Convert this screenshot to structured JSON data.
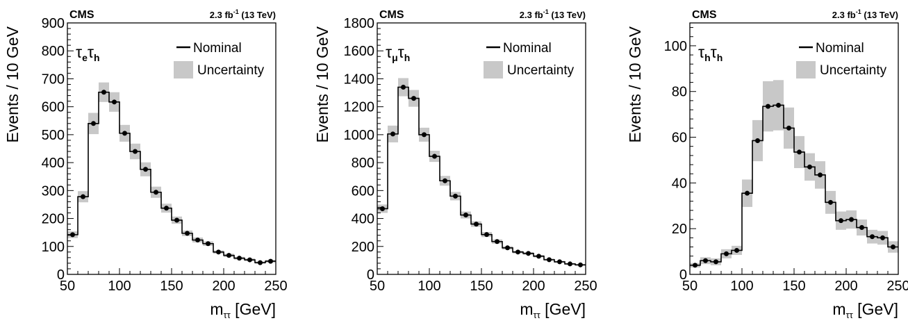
{
  "colors": {
    "nominal_line": "#000000",
    "uncertainty_band": "#c8c8c8",
    "marker": "#000000"
  },
  "chart_data": [
    {
      "type": "histogram",
      "experiment": "CMS",
      "luminosity_prefix": "2.3 fb",
      "luminosity_exp": "-1",
      "luminosity_suffix": " (13 TeV)",
      "channel_label": {
        "base1": "τ",
        "sub1": "e",
        "base2": "τ",
        "sub2": "h"
      },
      "ylabel": "Events / 10 GeV",
      "xlabel": {
        "base": "m",
        "sub": "ττ",
        "unit": " [GeV]"
      },
      "xlim": [
        50,
        250
      ],
      "ylim": [
        0,
        900
      ],
      "xticks": [
        50,
        100,
        150,
        200,
        250
      ],
      "yticks": [
        0,
        100,
        200,
        300,
        400,
        500,
        600,
        700,
        800,
        900
      ],
      "bin_edges": [
        50,
        60,
        70,
        80,
        90,
        100,
        110,
        120,
        130,
        140,
        150,
        160,
        170,
        180,
        190,
        200,
        210,
        220,
        230,
        240,
        250
      ],
      "values": [
        142,
        278,
        540,
        652,
        617,
        505,
        440,
        376,
        294,
        237,
        194,
        147,
        123,
        110,
        80,
        68,
        58,
        52,
        42,
        47
      ],
      "uncertainty": [
        12,
        20,
        38,
        35,
        35,
        30,
        28,
        25,
        20,
        16,
        13,
        10,
        9,
        8,
        6,
        6,
        5,
        5,
        4,
        5
      ],
      "legend": [
        {
          "label": "Nominal",
          "style": "line"
        },
        {
          "label": "Uncertainty",
          "style": "box"
        }
      ],
      "legend_position": "top-right"
    },
    {
      "type": "histogram",
      "experiment": "CMS",
      "luminosity_prefix": "2.3 fb",
      "luminosity_exp": "-1",
      "luminosity_suffix": " (13 TeV)",
      "channel_label": {
        "base1": "τ",
        "sub1": "μ",
        "base2": "τ",
        "sub2": "h"
      },
      "ylabel": "Events / 10 GeV",
      "xlabel": {
        "base": "m",
        "sub": "ττ",
        "unit": " [GeV]"
      },
      "xlim": [
        50,
        250
      ],
      "ylim": [
        0,
        1800
      ],
      "xticks": [
        50,
        100,
        150,
        200,
        250
      ],
      "yticks": [
        0,
        200,
        400,
        600,
        800,
        1000,
        1200,
        1400,
        1600,
        1800
      ],
      "bin_edges": [
        50,
        60,
        70,
        80,
        90,
        100,
        110,
        120,
        130,
        140,
        150,
        160,
        170,
        180,
        190,
        200,
        210,
        220,
        230,
        240,
        250
      ],
      "values": [
        470,
        1005,
        1340,
        1260,
        1000,
        845,
        670,
        560,
        425,
        360,
        285,
        235,
        190,
        160,
        150,
        130,
        105,
        90,
        75,
        68
      ],
      "uncertainty": [
        30,
        60,
        65,
        60,
        50,
        40,
        35,
        30,
        25,
        20,
        18,
        15,
        12,
        10,
        10,
        9,
        8,
        7,
        6,
        6
      ],
      "legend": [
        {
          "label": "Nominal",
          "style": "line"
        },
        {
          "label": "Uncertainty",
          "style": "box"
        }
      ],
      "legend_position": "top-right"
    },
    {
      "type": "histogram",
      "experiment": "CMS",
      "luminosity_prefix": "2.3 fb",
      "luminosity_exp": "-1",
      "luminosity_suffix": " (13 TeV)",
      "channel_label": {
        "base1": "τ",
        "sub1": "h",
        "base2": "τ",
        "sub2": "h"
      },
      "ylabel": "Events / 10 GeV",
      "xlabel": {
        "base": "m",
        "sub": "ττ",
        "unit": " [GeV]"
      },
      "xlim": [
        50,
        250
      ],
      "ylim": [
        0,
        110
      ],
      "xticks": [
        50,
        100,
        150,
        200,
        250
      ],
      "yticks": [
        0,
        20,
        40,
        60,
        80,
        100
      ],
      "bin_edges": [
        50,
        60,
        70,
        80,
        90,
        100,
        110,
        120,
        130,
        140,
        150,
        160,
        170,
        180,
        190,
        200,
        210,
        220,
        230,
        240,
        250
      ],
      "values": [
        4,
        6,
        5.5,
        9,
        10.5,
        35.5,
        58.5,
        73.5,
        74,
        64,
        53.5,
        47,
        43.5,
        31.5,
        23.5,
        24,
        20.5,
        16.5,
        16,
        12
      ],
      "uncertainty": [
        1,
        1.5,
        1.5,
        2,
        2,
        6,
        9,
        11,
        11,
        9,
        7,
        6,
        6,
        5,
        4,
        4,
        3.5,
        3,
        3,
        2.5
      ],
      "legend": [
        {
          "label": "Nominal",
          "style": "line"
        },
        {
          "label": "Uncertainty",
          "style": "box"
        }
      ],
      "legend_position": "top-right"
    }
  ]
}
